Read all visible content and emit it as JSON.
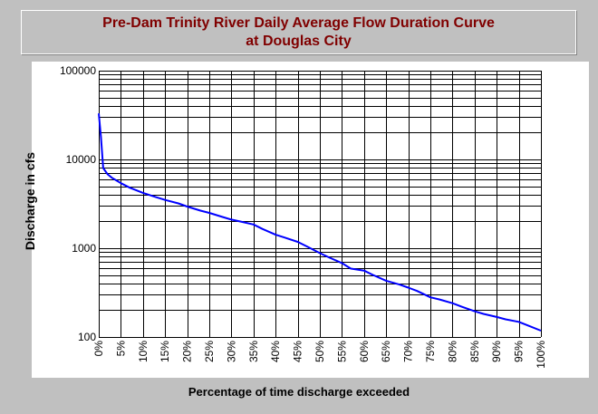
{
  "colors": {
    "background": "#c0c0c0",
    "plot_area": "#ffffff",
    "title": "#800000",
    "line": "#0000ff",
    "grid": "#000000"
  },
  "chart_data": {
    "type": "line",
    "title": "Pre-Dam Trinity River Daily Average Flow Duration Curve",
    "subtitle": "at Douglas City",
    "xlabel": "Percentage of time discharge exceeded",
    "ylabel": "Discharge in cfs",
    "x_scale": "linear",
    "y_scale": "log",
    "xlim": [
      0,
      100
    ],
    "ylim": [
      100,
      100000
    ],
    "grid": true,
    "legend": "none",
    "x_ticks": [
      "0%",
      "5%",
      "10%",
      "15%",
      "20%",
      "25%",
      "30%",
      "35%",
      "40%",
      "45%",
      "50%",
      "55%",
      "60%",
      "65%",
      "70%",
      "75%",
      "80%",
      "85%",
      "90%",
      "95%",
      "100%"
    ],
    "y_ticks": [
      "100",
      "1000",
      "10000",
      "100000"
    ],
    "series": [
      {
        "x": [
          0,
          0.5,
          1,
          2,
          3,
          5,
          7,
          10,
          13,
          15,
          18,
          20,
          23,
          25,
          28,
          30,
          32,
          35,
          37,
          40,
          42,
          45,
          47,
          50,
          52,
          55,
          57,
          60,
          62,
          65,
          68,
          70,
          72,
          75,
          77,
          80,
          82,
          85,
          87,
          90,
          92,
          95,
          97,
          100
        ],
        "y": [
          33000,
          18000,
          8000,
          6800,
          6200,
          5400,
          4800,
          4200,
          3750,
          3500,
          3200,
          2950,
          2650,
          2500,
          2250,
          2100,
          2000,
          1850,
          1650,
          1420,
          1320,
          1180,
          1050,
          880,
          790,
          680,
          590,
          560,
          500,
          430,
          390,
          360,
          330,
          280,
          265,
          240,
          220,
          195,
          182,
          168,
          158,
          148,
          135,
          118
        ]
      }
    ]
  }
}
